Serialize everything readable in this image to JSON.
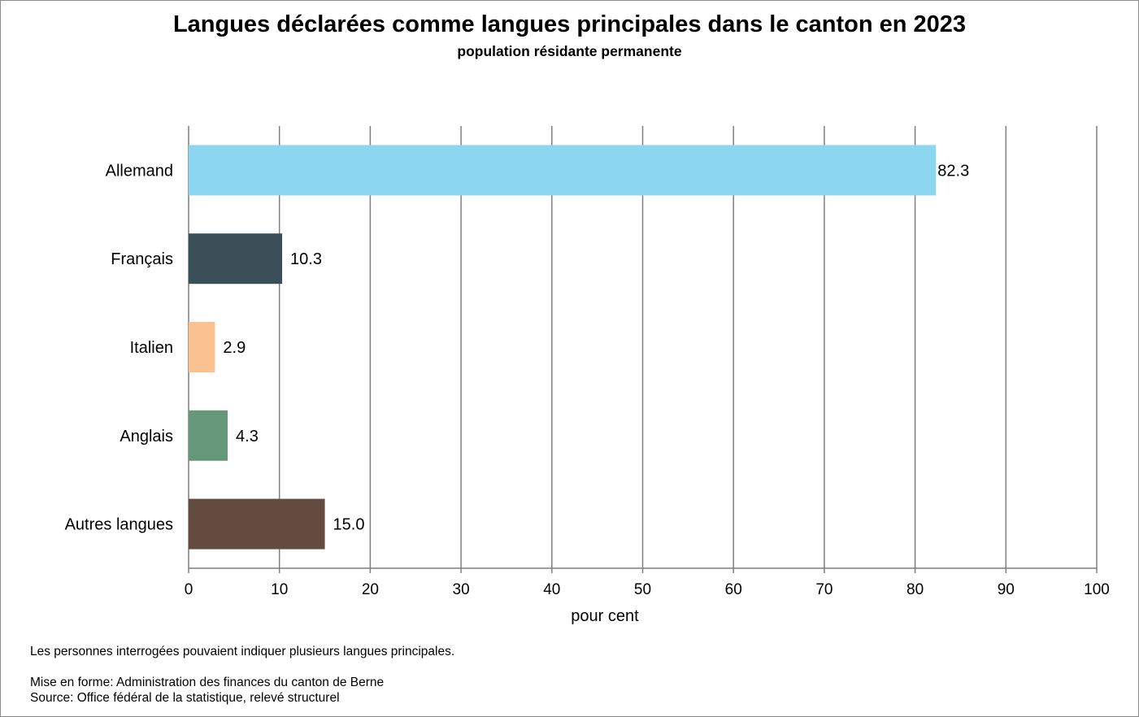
{
  "chart_data": {
    "type": "bar",
    "orientation": "horizontal",
    "title": "Langues déclarées comme langues principales dans le canton en 2023",
    "subtitle": "population résidante permanente",
    "categories": [
      "Allemand",
      "Français",
      "Italien",
      "Anglais",
      "Autres langues"
    ],
    "values": [
      82.3,
      10.3,
      2.9,
      4.3,
      15.0
    ],
    "value_labels": [
      "82.3",
      "10.3",
      "2.9",
      "4.3",
      "15.0"
    ],
    "colors": [
      "#8dd6ef",
      "#3b4f59",
      "#fbc18f",
      "#65987a",
      "#634b40"
    ],
    "xlabel": "pour cent",
    "ylabel": "",
    "xlim": [
      0,
      100
    ],
    "xticks": [
      "0",
      "10",
      "20",
      "30",
      "40",
      "50",
      "60",
      "70",
      "80",
      "90",
      "100"
    ],
    "grid": "vertical",
    "legend": "none"
  },
  "footnotes": {
    "note": "Les personnes interrogées pouvaient indiquer plusieurs langues principales.",
    "layout_credit": "Mise en forme: Administration des finances du canton de Berne",
    "source": "Source: Office fédéral de la statistique, relevé structurel"
  }
}
